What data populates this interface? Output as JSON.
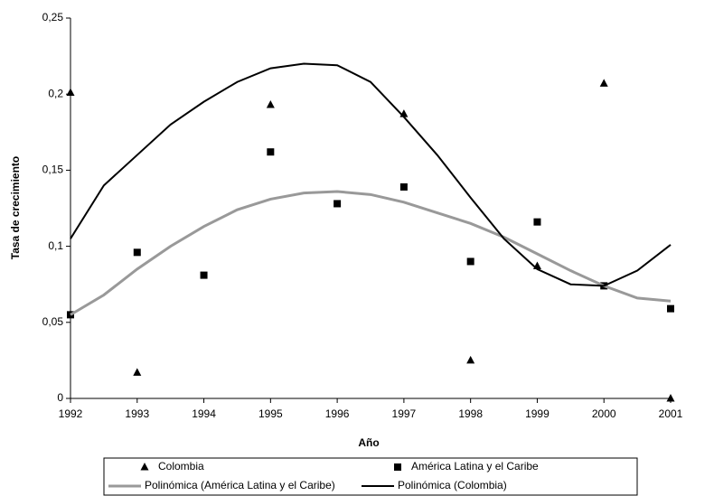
{
  "chart_data": {
    "type": "scatter",
    "xlabel": "Año",
    "ylabel": "Tasa de crecimiento",
    "xlim": [
      1992,
      2001
    ],
    "xticks": [
      1992,
      1993,
      1994,
      1995,
      1996,
      1997,
      1998,
      1999,
      2000,
      2001
    ],
    "ylim": [
      0,
      0.25
    ],
    "yticks": [
      0,
      {
        "value": 0.05,
        "label": "0,05"
      },
      {
        "value": 0.1,
        "label": "0,1"
      },
      {
        "value": 0.15,
        "label": "0,15"
      },
      {
        "value": 0.2,
        "label": "0,2"
      },
      {
        "value": 0.25,
        "label": "0,25"
      }
    ],
    "series": [
      {
        "name": "Colombia",
        "marker": "triangle",
        "color": "#000000",
        "x": [
          1992,
          1993,
          1995,
          1997,
          1998,
          1999,
          2000,
          2001
        ],
        "values": [
          0.201,
          0.017,
          0.193,
          0.187,
          0.025,
          0.087,
          0.207,
          0.0
        ]
      },
      {
        "name": "América Latina y el Caribe",
        "marker": "square",
        "color": "#000000",
        "x": [
          1992,
          1993,
          1994,
          1995,
          1996,
          1997,
          1998,
          1999,
          2000,
          2001
        ],
        "values": [
          0.055,
          0.096,
          0.081,
          0.162,
          0.128,
          0.139,
          0.09,
          0.116,
          0.074,
          0.059
        ]
      },
      {
        "name": "Polinómica (América Latina y el Caribe)",
        "marker": "line",
        "color": "#999999",
        "x": [
          1992,
          1992.5,
          1993,
          1993.5,
          1994,
          1994.5,
          1995,
          1995.5,
          1996,
          1996.5,
          1997,
          1997.5,
          1998,
          1998.5,
          1999,
          1999.5,
          2000,
          2000.5,
          2001
        ],
        "values": [
          0.055,
          0.068,
          0.085,
          0.1,
          0.113,
          0.124,
          0.131,
          0.135,
          0.136,
          0.134,
          0.129,
          0.122,
          0.115,
          0.106,
          0.095,
          0.084,
          0.074,
          0.066,
          0.064
        ]
      },
      {
        "name": "Polinómica (Colombia)",
        "marker": "line",
        "color": "#000000",
        "x": [
          1992,
          1992.5,
          1993,
          1993.5,
          1994,
          1994.5,
          1995,
          1995.5,
          1996,
          1996.5,
          1997,
          1997.5,
          1998,
          1998.5,
          1999,
          1999.5,
          2000,
          2000.5,
          2001
        ],
        "values": [
          0.105,
          0.14,
          0.16,
          0.18,
          0.195,
          0.208,
          0.217,
          0.22,
          0.219,
          0.208,
          0.185,
          0.16,
          0.132,
          0.105,
          0.085,
          0.075,
          0.074,
          0.084,
          0.101
        ]
      }
    ]
  }
}
